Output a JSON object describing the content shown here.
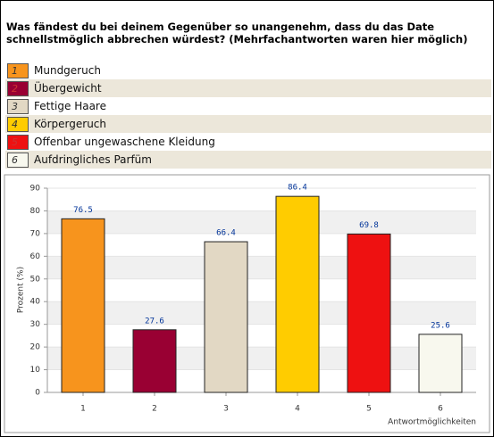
{
  "chart_data": {
    "type": "bar",
    "title": "Was fändest du bei deinem Gegenüber so unangenehm, dass du das Date schnellstmöglich abbrechen würdest? (Mehrfachantworten waren hier möglich)",
    "categories": [
      "1",
      "2",
      "3",
      "4",
      "5",
      "6"
    ],
    "labels": [
      "Mundgeruch",
      "Übergewicht",
      "Fettige Haare",
      "Körpergeruch",
      "Offenbar ungewaschene Kleidung",
      "Aufdringliches Parfüm"
    ],
    "colors": [
      "#f7941d",
      "#990033",
      "#e2d8c4",
      "#ffcc00",
      "#ee1111",
      "#f8f8ee"
    ],
    "values": [
      76.5,
      27.6,
      66.4,
      86.4,
      69.8,
      25.6
    ],
    "ylabel": "Prozent (%)",
    "xlabel": "Antwortmöglichkeiten",
    "ylim": [
      0,
      90
    ],
    "yticks": [
      0,
      10,
      20,
      30,
      40,
      50,
      60,
      70,
      80,
      90
    ],
    "grid": true
  }
}
